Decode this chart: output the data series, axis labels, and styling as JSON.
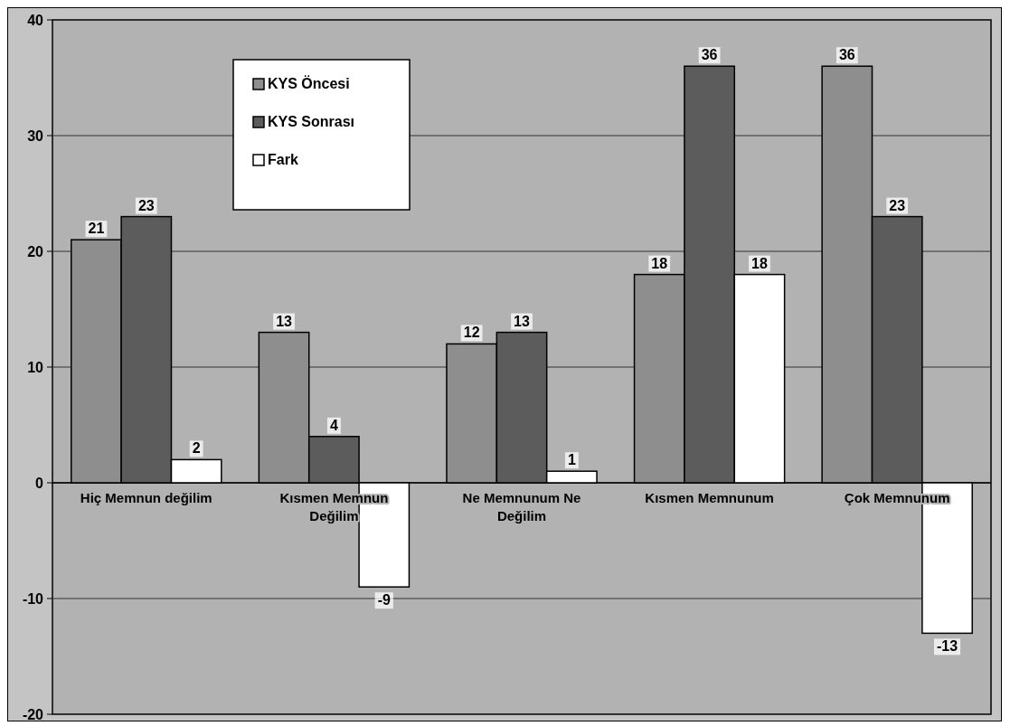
{
  "chart_data": {
    "type": "bar",
    "categories": [
      "Hiç Memnun değilim",
      "Kısmen Memnun Değilim",
      "Ne Memnunum Ne Değilim",
      "Kısmen Memnunum",
      "Çok Memnunum"
    ],
    "series": [
      {
        "name": "KYS Öncesi",
        "color": "#8e8e8e",
        "values": [
          21,
          13,
          12,
          18,
          36
        ]
      },
      {
        "name": "KYS Sonrası",
        "color": "#5c5c5c",
        "values": [
          23,
          4,
          13,
          36,
          23
        ]
      },
      {
        "name": "Fark",
        "color": "#ffffff",
        "values": [
          2,
          -9,
          1,
          18,
          -13
        ]
      }
    ],
    "ylim": [
      -20,
      40
    ],
    "yticks": [
      -20,
      -10,
      0,
      10,
      20,
      30,
      40
    ],
    "grid": "y",
    "legend": "top left",
    "data_labels": true
  }
}
